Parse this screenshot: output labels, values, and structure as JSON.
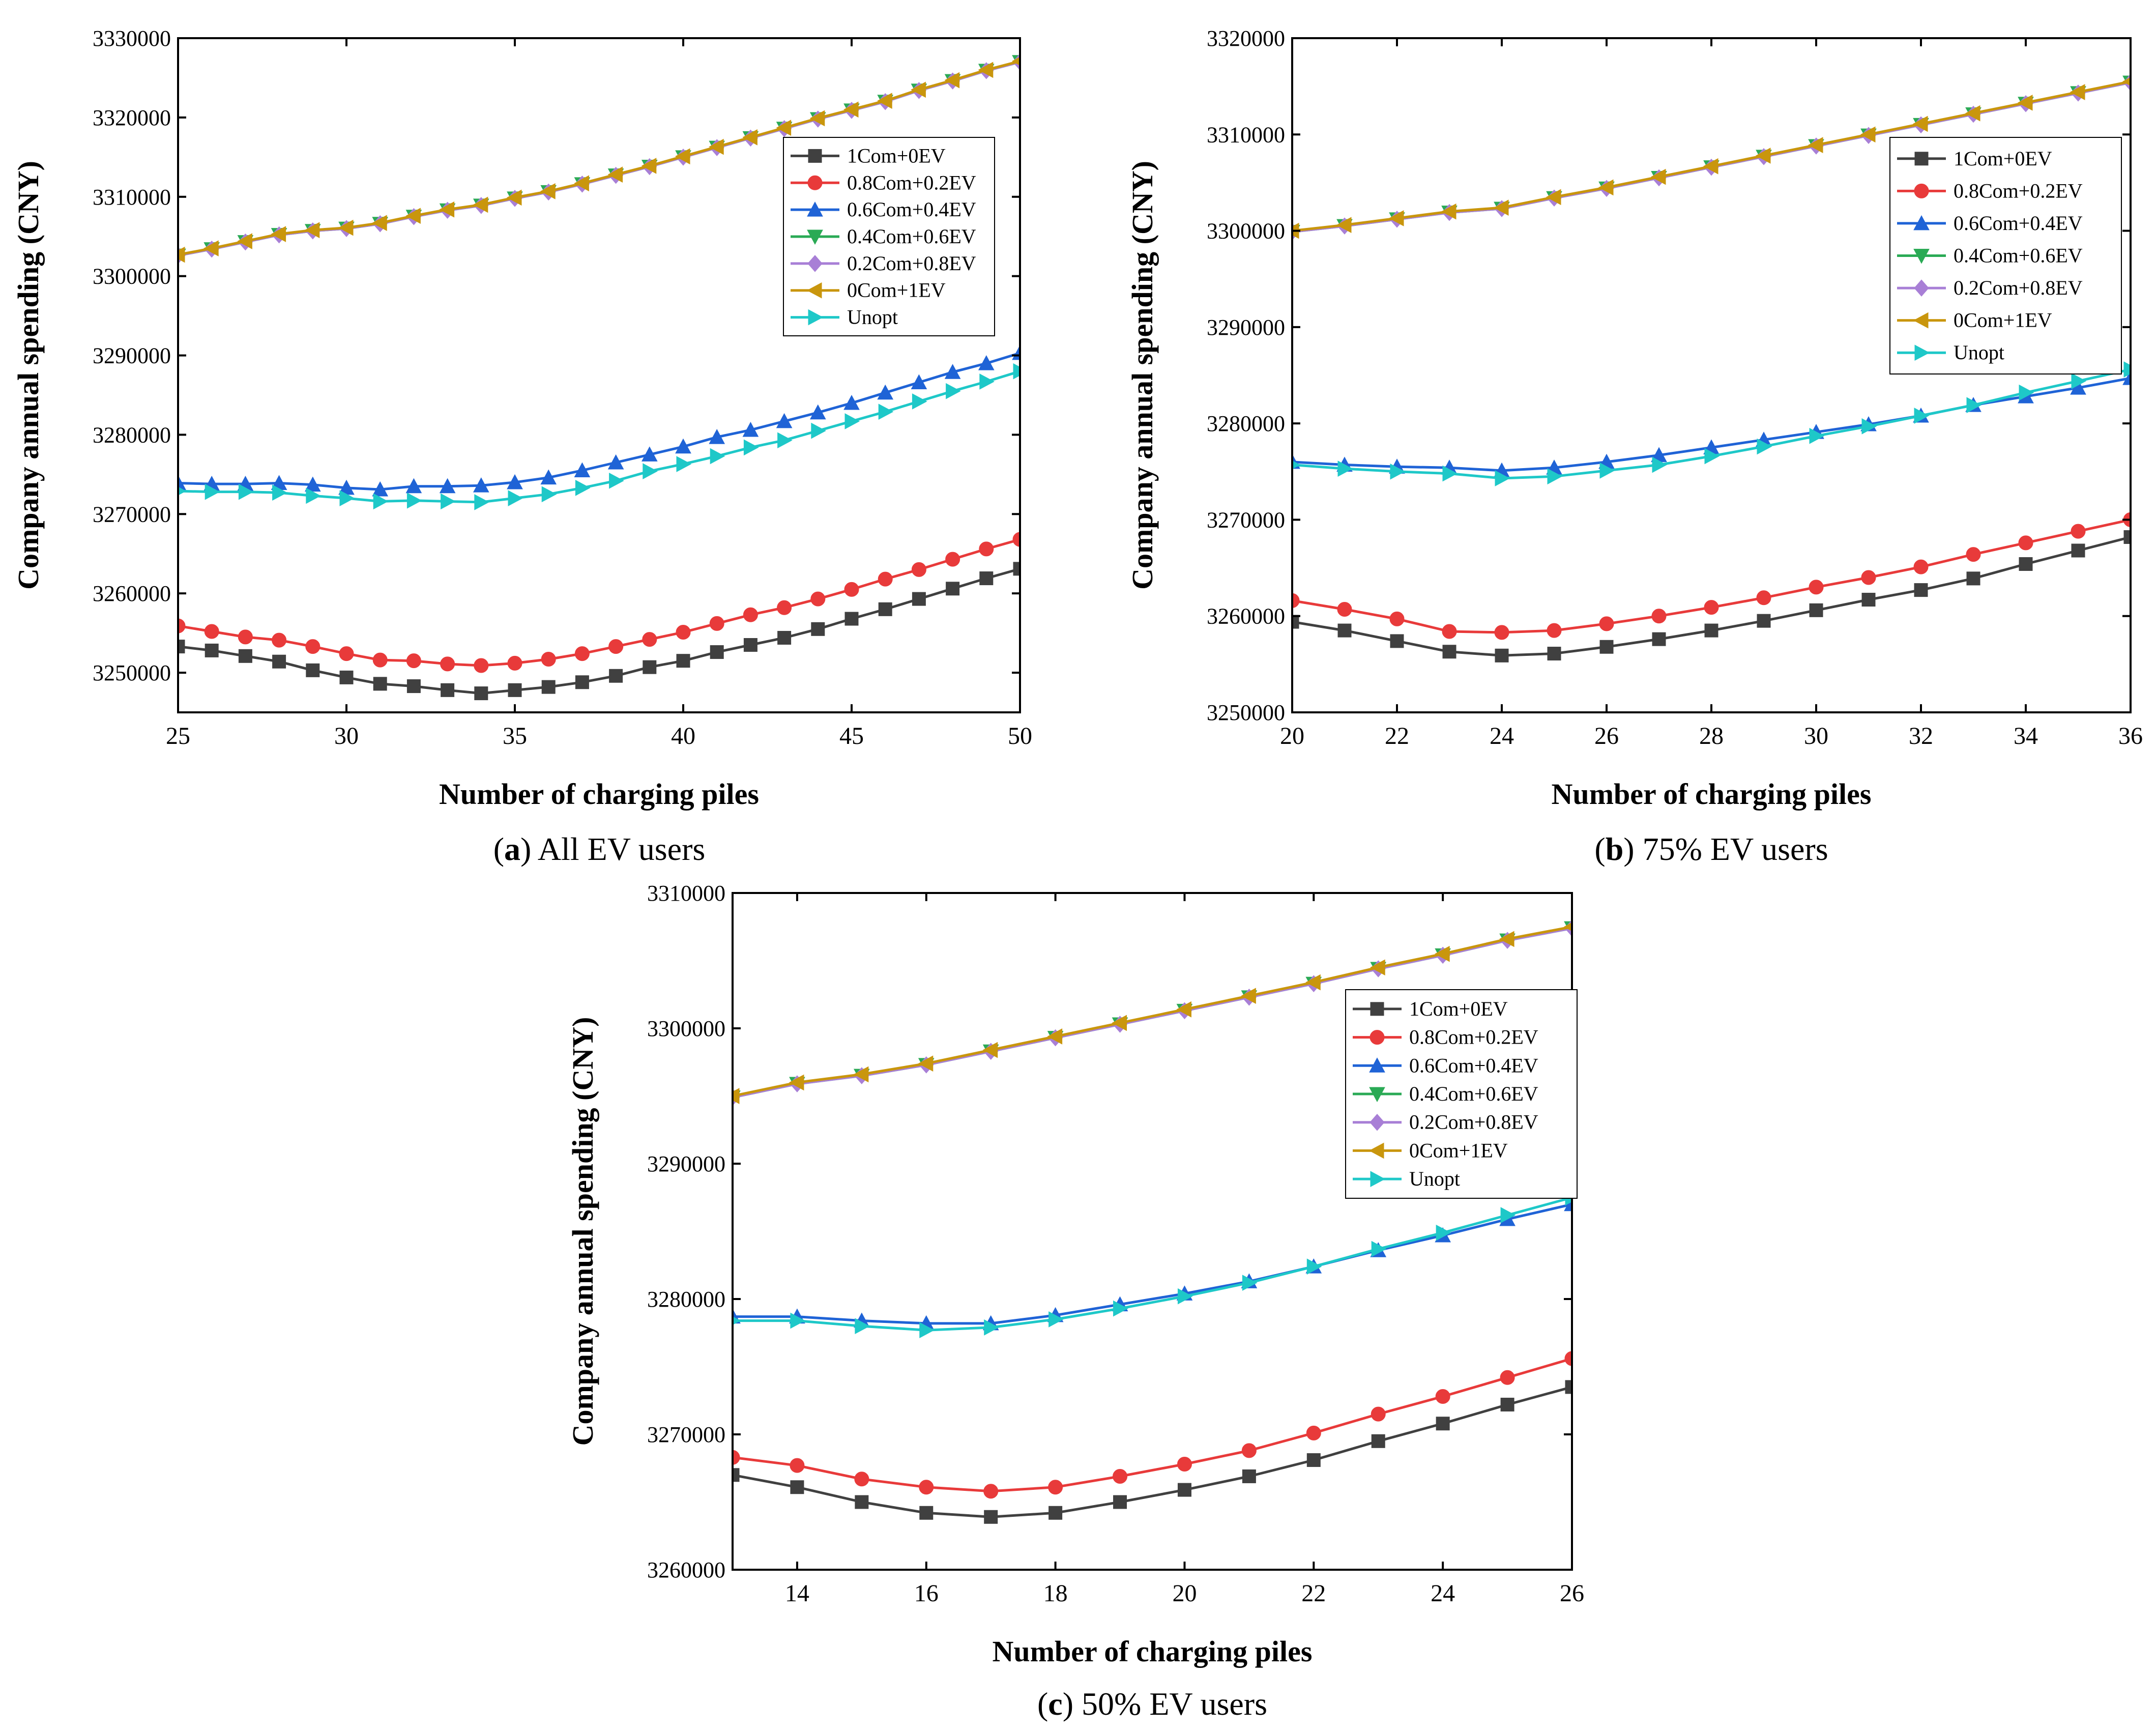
{
  "chart_data": [
    {
      "panel": "a",
      "type": "line",
      "caption_letter": "a",
      "caption_text": "All EV users",
      "xlabel": "Number of charging piles",
      "ylabel": "Company annual spending (CNY)",
      "xlim": [
        25,
        50
      ],
      "ylim": [
        3245000,
        3330000
      ],
      "xticks": [
        25,
        30,
        35,
        40,
        45,
        50
      ],
      "yticks": [
        3250000,
        3260000,
        3270000,
        3280000,
        3290000,
        3300000,
        3310000,
        3320000,
        3330000
      ],
      "legend_position": "upper-right",
      "x": [
        25,
        26,
        27,
        28,
        29,
        30,
        31,
        32,
        33,
        34,
        35,
        36,
        37,
        38,
        39,
        40,
        41,
        42,
        43,
        44,
        45,
        46,
        47,
        48,
        49,
        50
      ],
      "series": [
        {
          "name": "1Com+0EV",
          "color": "#404040",
          "marker": "square",
          "values": [
            3253300,
            3252800,
            3252100,
            3251400,
            3250300,
            3249400,
            3248600,
            3248300,
            3247800,
            3247400,
            3247800,
            3248200,
            3248800,
            3249600,
            3250700,
            3251500,
            3252600,
            3253500,
            3254400,
            3255500,
            3256800,
            3258000,
            3259300,
            3260600,
            3261900,
            3263100
          ]
        },
        {
          "name": "0.8Com+0.2EV",
          "color": "#e83a3a",
          "marker": "circle",
          "values": [
            3255900,
            3255200,
            3254500,
            3254100,
            3253300,
            3252400,
            3251600,
            3251500,
            3251100,
            3250900,
            3251200,
            3251700,
            3252400,
            3253300,
            3254200,
            3255100,
            3256200,
            3257300,
            3258200,
            3259300,
            3260500,
            3261800,
            3263000,
            3264300,
            3265600,
            3266800
          ]
        },
        {
          "name": "0.6Com+0.4EV",
          "color": "#1f63d6",
          "marker": "triangle-up",
          "values": [
            3273900,
            3273800,
            3273800,
            3273900,
            3273700,
            3273300,
            3273100,
            3273500,
            3273500,
            3273600,
            3274000,
            3274600,
            3275500,
            3276500,
            3277500,
            3278500,
            3279700,
            3280600,
            3281700,
            3282800,
            3284000,
            3285300,
            3286600,
            3287900,
            3289000,
            3290300
          ]
        },
        {
          "name": "0.4Com+0.6EV",
          "color": "#2aaa55",
          "marker": "triangle-down",
          "values": [
            3302600,
            3303400,
            3304300,
            3305200,
            3305700,
            3306000,
            3306600,
            3307500,
            3308300,
            3308900,
            3309800,
            3310600,
            3311600,
            3312700,
            3313800,
            3315000,
            3316200,
            3317400,
            3318600,
            3319800,
            3320900,
            3322000,
            3323400,
            3324600,
            3325900,
            3327000
          ]
        },
        {
          "name": "0.2Com+0.8EV",
          "color": "#a87fd6",
          "marker": "diamond",
          "values": [
            3302600,
            3303400,
            3304300,
            3305200,
            3305700,
            3306000,
            3306600,
            3307500,
            3308300,
            3308900,
            3309800,
            3310600,
            3311600,
            3312700,
            3313800,
            3315000,
            3316200,
            3317400,
            3318600,
            3319800,
            3320900,
            3322000,
            3323400,
            3324600,
            3325900,
            3327000
          ]
        },
        {
          "name": "0Com+1EV",
          "color": "#c9960d",
          "marker": "triangle-left",
          "values": [
            3302700,
            3303500,
            3304400,
            3305300,
            3305800,
            3306100,
            3306700,
            3307600,
            3308400,
            3309000,
            3309900,
            3310700,
            3311700,
            3312800,
            3313900,
            3315100,
            3316300,
            3317500,
            3318700,
            3319900,
            3321000,
            3322100,
            3323500,
            3324700,
            3326000,
            3327100
          ]
        },
        {
          "name": "Unopt",
          "color": "#1ec8c8",
          "marker": "triangle-right",
          "values": [
            3272900,
            3272800,
            3272800,
            3272700,
            3272300,
            3272000,
            3271600,
            3271700,
            3271600,
            3271500,
            3272000,
            3272500,
            3273300,
            3274200,
            3275400,
            3276300,
            3277300,
            3278400,
            3279300,
            3280500,
            3281700,
            3282900,
            3284200,
            3285500,
            3286700,
            3288000
          ]
        }
      ]
    },
    {
      "panel": "b",
      "type": "line",
      "caption_letter": "b",
      "caption_text": "75% EV users",
      "xlabel": "Number of charging piles",
      "ylabel": "Company annual spending (CNY)",
      "xlim": [
        20,
        36
      ],
      "ylim": [
        3250000,
        3320000
      ],
      "xticks": [
        20,
        22,
        24,
        26,
        28,
        30,
        32,
        34,
        36
      ],
      "yticks": [
        3250000,
        3260000,
        3270000,
        3280000,
        3290000,
        3300000,
        3310000,
        3320000
      ],
      "legend_position": "upper-right",
      "x": [
        20,
        21,
        22,
        23,
        24,
        25,
        26,
        27,
        28,
        29,
        30,
        31,
        32,
        33,
        34,
        35,
        36
      ],
      "series": [
        {
          "name": "1Com+0EV",
          "color": "#404040",
          "marker": "square",
          "values": [
            3259400,
            3258500,
            3257400,
            3256300,
            3255900,
            3256100,
            3256800,
            3257600,
            3258500,
            3259500,
            3260600,
            3261700,
            3262700,
            3263900,
            3265400,
            3266800,
            3268200
          ]
        },
        {
          "name": "0.8Com+0.2EV",
          "color": "#e83a3a",
          "marker": "circle",
          "values": [
            3261600,
            3260700,
            3259700,
            3258400,
            3258300,
            3258500,
            3259200,
            3260000,
            3260900,
            3261900,
            3263000,
            3264000,
            3265100,
            3266400,
            3267600,
            3268800,
            3270000
          ]
        },
        {
          "name": "0.6Com+0.4EV",
          "color": "#1f63d6",
          "marker": "triangle-up",
          "values": [
            3276000,
            3275700,
            3275500,
            3275400,
            3275100,
            3275400,
            3276000,
            3276700,
            3277500,
            3278300,
            3279100,
            3279900,
            3280800,
            3281900,
            3282800,
            3283700,
            3284700
          ]
        },
        {
          "name": "0.4Com+0.6EV",
          "color": "#2aaa55",
          "marker": "triangle-down",
          "values": [
            3299900,
            3300500,
            3301200,
            3301900,
            3302300,
            3303400,
            3304400,
            3305500,
            3306600,
            3307700,
            3308800,
            3309900,
            3311000,
            3312100,
            3313200,
            3314300,
            3315400
          ]
        },
        {
          "name": "0.2Com+0.8EV",
          "color": "#a87fd6",
          "marker": "diamond",
          "values": [
            3299900,
            3300500,
            3301200,
            3301900,
            3302300,
            3303400,
            3304400,
            3305500,
            3306600,
            3307700,
            3308800,
            3309900,
            3311000,
            3312100,
            3313200,
            3314300,
            3315400
          ]
        },
        {
          "name": "0Com+1EV",
          "color": "#c9960d",
          "marker": "triangle-left",
          "values": [
            3300000,
            3300600,
            3301300,
            3302000,
            3302400,
            3303500,
            3304500,
            3305600,
            3306700,
            3307800,
            3308900,
            3310000,
            3311100,
            3312200,
            3313300,
            3314400,
            3315500
          ]
        },
        {
          "name": "Unopt",
          "color": "#1ec8c8",
          "marker": "triangle-right",
          "values": [
            3275700,
            3275300,
            3275000,
            3274800,
            3274300,
            3274500,
            3275100,
            3275700,
            3276600,
            3277600,
            3278700,
            3279700,
            3280800,
            3281900,
            3283200,
            3284400,
            3285600
          ]
        }
      ]
    },
    {
      "panel": "c",
      "type": "line",
      "caption_letter": "c",
      "caption_text": "50% EV users",
      "xlabel": "Number of charging piles",
      "ylabel": "Company annual spending (CNY)",
      "xlim": [
        13,
        26
      ],
      "ylim": [
        3260000,
        3310000
      ],
      "xticks": [
        14,
        16,
        18,
        20,
        22,
        24,
        26
      ],
      "yticks": [
        3260000,
        3270000,
        3280000,
        3290000,
        3300000,
        3310000
      ],
      "legend_position": "upper-left",
      "x": [
        13,
        14,
        15,
        16,
        17,
        18,
        19,
        20,
        21,
        22,
        23,
        24,
        25,
        26
      ],
      "series": [
        {
          "name": "1Com+0EV",
          "color": "#404040",
          "marker": "square",
          "values": [
            3267000,
            3266100,
            3265000,
            3264200,
            3263900,
            3264200,
            3265000,
            3265900,
            3266900,
            3268100,
            3269500,
            3270800,
            3272200,
            3273500
          ]
        },
        {
          "name": "0.8Com+0.2EV",
          "color": "#e83a3a",
          "marker": "circle",
          "values": [
            3268300,
            3267700,
            3266700,
            3266100,
            3265800,
            3266100,
            3266900,
            3267800,
            3268800,
            3270100,
            3271500,
            3272800,
            3274200,
            3275600
          ]
        },
        {
          "name": "0.6Com+0.4EV",
          "color": "#1f63d6",
          "marker": "triangle-up",
          "values": [
            3278700,
            3278700,
            3278400,
            3278200,
            3278200,
            3278800,
            3279600,
            3280400,
            3281300,
            3282400,
            3283600,
            3284700,
            3285900,
            3287000
          ]
        },
        {
          "name": "0.4Com+0.6EV",
          "color": "#2aaa55",
          "marker": "triangle-down",
          "values": [
            3294900,
            3295900,
            3296500,
            3297300,
            3298300,
            3299300,
            3300300,
            3301300,
            3302300,
            3303300,
            3304400,
            3305400,
            3306500,
            3307400
          ]
        },
        {
          "name": "0.2Com+0.8EV",
          "color": "#a87fd6",
          "marker": "diamond",
          "values": [
            3294900,
            3295900,
            3296500,
            3297300,
            3298300,
            3299300,
            3300300,
            3301300,
            3302300,
            3303300,
            3304400,
            3305400,
            3306500,
            3307400
          ]
        },
        {
          "name": "0Com+1EV",
          "color": "#c9960d",
          "marker": "triangle-left",
          "values": [
            3295000,
            3296000,
            3296600,
            3297400,
            3298400,
            3299400,
            3300400,
            3301400,
            3302400,
            3303400,
            3304500,
            3305500,
            3306600,
            3307500
          ]
        },
        {
          "name": "Unopt",
          "color": "#1ec8c8",
          "marker": "triangle-right",
          "values": [
            3278400,
            3278400,
            3278000,
            3277700,
            3277900,
            3278500,
            3279300,
            3280200,
            3281200,
            3282400,
            3283700,
            3284900,
            3286200,
            3287500
          ]
        }
      ]
    }
  ]
}
